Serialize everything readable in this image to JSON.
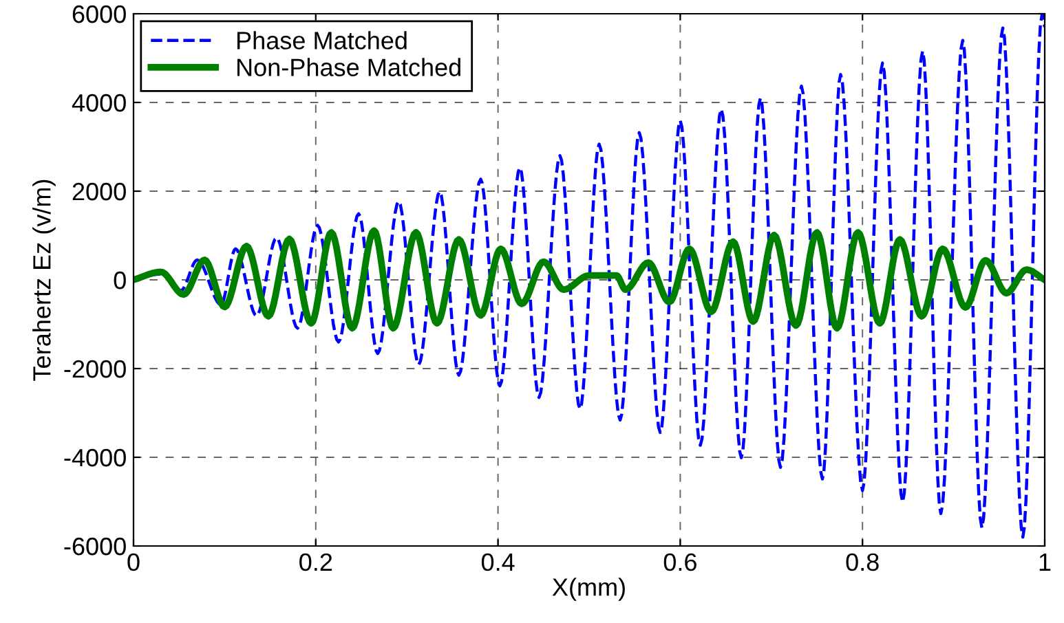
{
  "chart_data": {
    "type": "line",
    "xlabel": "X(mm)",
    "ylabel": "Terahertz Ez (v/m)",
    "xlim": [
      0,
      1
    ],
    "ylim": [
      -6000,
      6000
    ],
    "xticks": [
      0,
      0.2,
      0.4,
      0.6,
      0.8,
      {
        "value": 1,
        "label": "1"
      }
    ],
    "yticks": [
      -6000,
      -4000,
      -2000,
      0,
      2000,
      4000,
      6000
    ],
    "grid": true,
    "legend": "top left",
    "series": [
      {
        "name": "Phase Matched",
        "color": "#0000ff",
        "line_style": "dashed",
        "x": [
          0,
          0.03,
          0.052,
          0.07,
          0.096,
          0.112,
          0.135,
          0.157,
          0.18,
          0.202,
          0.225,
          0.247,
          0.268,
          0.291,
          0.313,
          0.336,
          0.357,
          0.381,
          0.402,
          0.424,
          0.445,
          0.468,
          0.49,
          0.511,
          0.534,
          0.555,
          0.578,
          0.6,
          0.622,
          0.645,
          0.667,
          0.688,
          0.71,
          0.733,
          0.756,
          0.776,
          0.8,
          0.822,
          0.844,
          0.866,
          0.886,
          0.91,
          0.931,
          0.954,
          0.976,
          0.997,
          1.0
        ],
        "values": [
          0,
          130,
          -240,
          450,
          -560,
          700,
          -810,
          950,
          -1090,
          1230,
          -1400,
          1490,
          -1660,
          1770,
          -1910,
          1990,
          -2150,
          2270,
          -2390,
          2530,
          -2650,
          2800,
          -2910,
          3060,
          -3160,
          3320,
          -3440,
          3590,
          -3730,
          3850,
          -4010,
          4100,
          -4230,
          4370,
          -4490,
          4630,
          -4750,
          4890,
          -5010,
          5160,
          -5270,
          5400,
          -5590,
          5680,
          -5800,
          5980,
          5700
        ]
      },
      {
        "name": "Non-Phase Matched",
        "color": "#008000",
        "line_style": "solid",
        "x": [
          0,
          0.03,
          0.055,
          0.078,
          0.1,
          0.124,
          0.148,
          0.171,
          0.195,
          0.217,
          0.24,
          0.264,
          0.285,
          0.31,
          0.333,
          0.357,
          0.381,
          0.403,
          0.426,
          0.45,
          0.472,
          0.5,
          0.53,
          0.54,
          0.565,
          0.588,
          0.61,
          0.634,
          0.658,
          0.68,
          0.703,
          0.727,
          0.75,
          0.772,
          0.795,
          0.819,
          0.841,
          0.865,
          0.888,
          0.913,
          0.935,
          0.958,
          0.98,
          1.0
        ],
        "values": [
          0,
          180,
          -330,
          450,
          -610,
          760,
          -820,
          920,
          -980,
          1070,
          -1090,
          1110,
          -1090,
          1070,
          -980,
          910,
          -800,
          700,
          -540,
          410,
          -220,
          100,
          100,
          -220,
          390,
          -500,
          700,
          -720,
          860,
          -940,
          1010,
          -1030,
          1070,
          -1090,
          1070,
          -980,
          910,
          -820,
          700,
          -620,
          440,
          -300,
          230,
          0
        ]
      }
    ]
  }
}
